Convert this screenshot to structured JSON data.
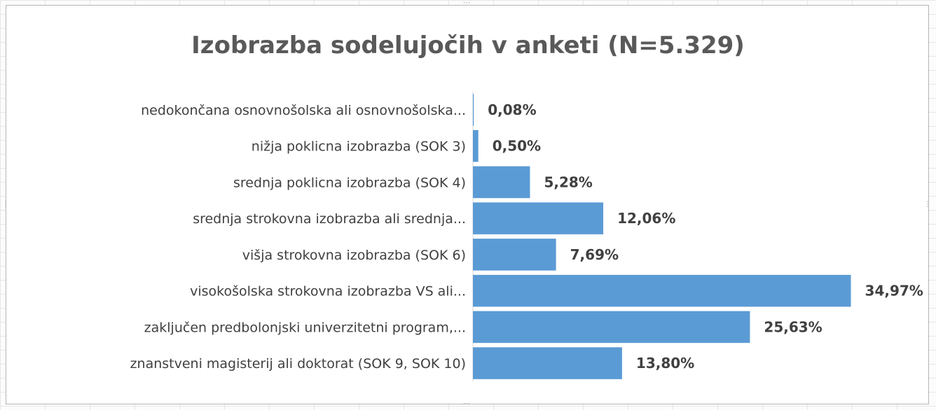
{
  "chart_data": {
    "type": "bar",
    "orientation": "horizontal",
    "title": "Izobrazba sodelujočih v anketi (N=5.329)",
    "categories": [
      "nedokončana osnovnošolska ali osnovnošolska...",
      "nižja poklicna izobrazba (SOK 3)",
      "srednja poklicna izobrazba (SOK 4)",
      "srednja strokovna izobrazba ali srednja...",
      "višja strokovna izobrazba (SOK 6)",
      "visokošolska strokovna izobrazba VS ali...",
      "zaključen predbolonjski univerzitetni program,...",
      "znanstveni magisterij ali doktorat (SOK 9, SOK 10)"
    ],
    "values": [
      0.08,
      0.5,
      5.28,
      12.06,
      7.69,
      34.97,
      25.63,
      13.8
    ],
    "data_labels": [
      "0,08%",
      "0,50%",
      "5,28%",
      "12,06%",
      "7,69%",
      "34,97%",
      "25,63%",
      "13,80%"
    ],
    "xlim": [
      0,
      35
    ],
    "grid": false,
    "legend": "none",
    "bar_color": "#5b9bd5",
    "axis_color": "#d9d9d9"
  }
}
